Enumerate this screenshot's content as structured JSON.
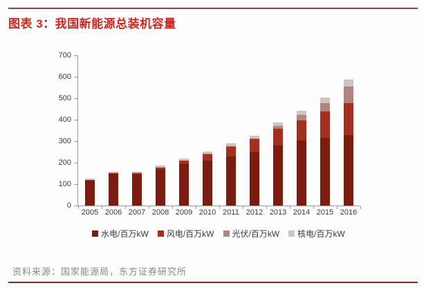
{
  "header": {
    "title": "图表 3：我国新能源总装机容量"
  },
  "footer": {
    "source": "资料来源：国家能源局，东方证券研究所"
  },
  "colors": {
    "title_red": "#ce2722",
    "top_rule": "#8e4044",
    "bottom_rule": "#7e2a28",
    "axis_gray": "#9a9a9a",
    "hydro": "#7c1b10",
    "wind": "#a5301e",
    "pv": "#b28380",
    "nuclear": "#cdc5c2"
  },
  "chart_data": {
    "type": "bar",
    "stacked": true,
    "title": "我国新能源总装机容量",
    "xlabel": "",
    "ylabel": "",
    "unit": "百万kW",
    "ylim": [
      0,
      700
    ],
    "yticks": [
      0,
      100,
      200,
      300,
      400,
      500,
      600,
      700
    ],
    "grid": false,
    "legend_position": "bottom",
    "categories": [
      "2005",
      "2006",
      "2007",
      "2008",
      "2009",
      "2010",
      "2011",
      "2012",
      "2013",
      "2014",
      "2015",
      "2016"
    ],
    "series": [
      {
        "name": "水电/百万kW",
        "color": "#7c1b10",
        "values": [
          117,
          148,
          145,
          167,
          194,
          210,
          230,
          248,
          280,
          302,
          315,
          329
        ]
      },
      {
        "name": "风电/百万kW",
        "color": "#a5301e",
        "values": [
          1,
          3,
          6,
          12,
          17,
          31,
          46,
          61,
          77,
          96,
          123,
          148
        ]
      },
      {
        "name": "光伏/百万kW",
        "color": "#b28380",
        "values": [
          0,
          0,
          0,
          0,
          0,
          1,
          2,
          3,
          15,
          25,
          38,
          78
        ]
      },
      {
        "name": "核电/百万kW",
        "color": "#cdc5c2",
        "values": [
          7,
          7,
          7,
          9,
          9,
          11,
          12,
          13,
          15,
          20,
          26,
          33
        ]
      }
    ],
    "totals": [
      125,
      158,
      158,
      188,
      220,
      253,
      290,
      325,
      387,
      443,
      502,
      588
    ]
  }
}
